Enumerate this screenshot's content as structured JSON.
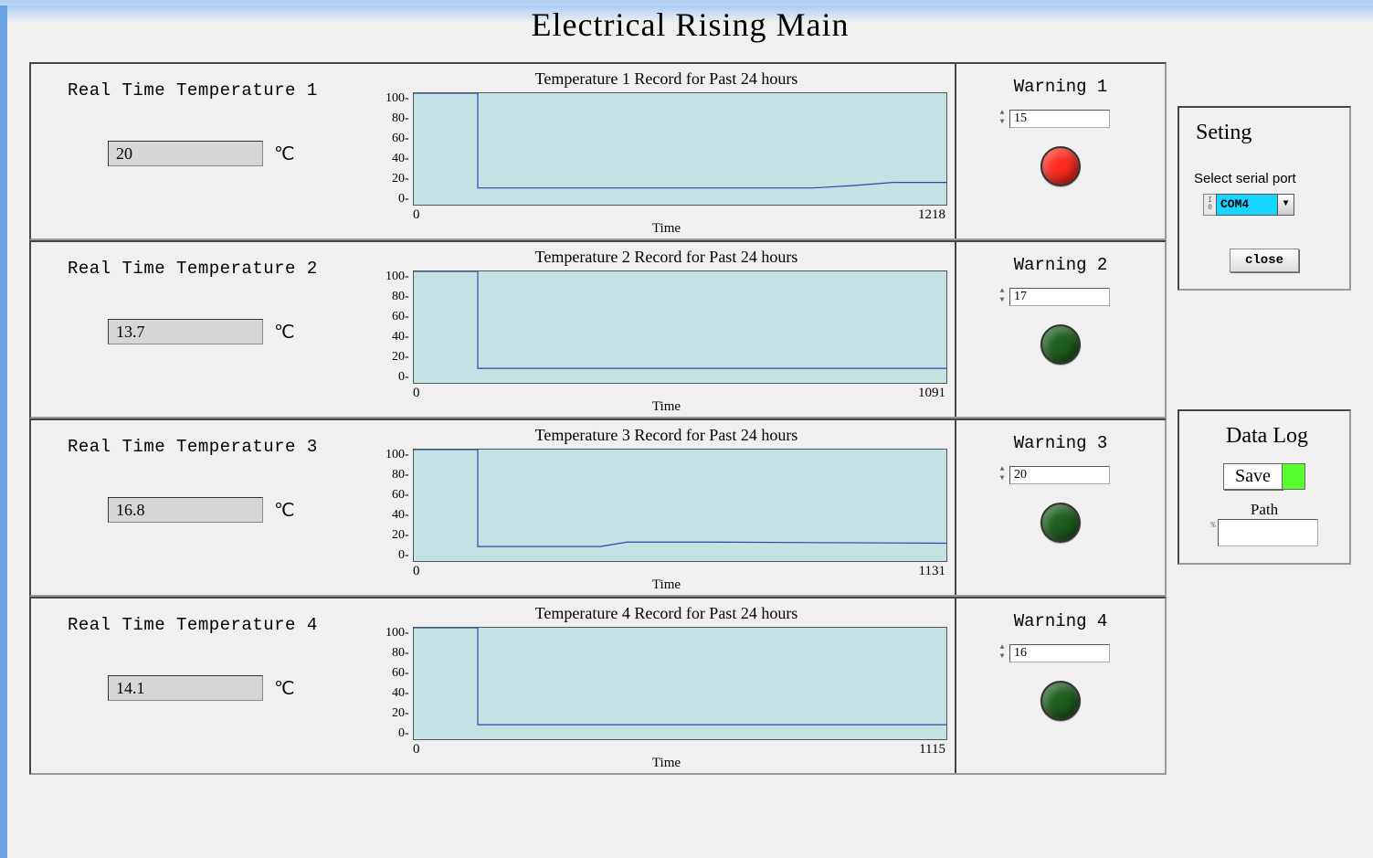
{
  "title": "Electrical Rising Main",
  "unit_symbol": "℃",
  "x_axis_label": "Time",
  "chart_style": {
    "ylim": [
      0,
      100
    ],
    "yticks": [
      100,
      80,
      60,
      40,
      20,
      0
    ],
    "xmin": 0,
    "plot_background": "#c4e2e3",
    "line_color": "#2448b0",
    "line_width": 1.2,
    "title_fontsize": 18,
    "tick_fontsize": 14
  },
  "led_colors": {
    "on_red": "#ff2a1f",
    "off_green": "#1e5e1e"
  },
  "channels": [
    {
      "rt_label": "Real Time Temperature 1",
      "rt_value": "20",
      "chart_title": "Temperature 1 Record for Past 24 hours",
      "xmax": 1218,
      "warn_title": "Warning 1",
      "warn_threshold": "15",
      "led": "on_red",
      "series": [
        [
          0,
          100
        ],
        [
          12,
          100
        ],
        [
          12,
          15
        ],
        [
          75,
          15
        ],
        [
          82,
          17
        ],
        [
          90,
          20
        ],
        [
          100,
          20
        ]
      ]
    },
    {
      "rt_label": "Real Time Temperature 2",
      "rt_value": "13.7",
      "chart_title": "Temperature 2 Record for Past 24 hours",
      "xmax": 1091,
      "warn_title": "Warning 2",
      "warn_threshold": "17",
      "led": "off_green",
      "series": [
        [
          0,
          100
        ],
        [
          12,
          100
        ],
        [
          12,
          13
        ],
        [
          100,
          13
        ]
      ]
    },
    {
      "rt_label": "Real Time Temperature 3",
      "rt_value": "16.8",
      "chart_title": "Temperature 3 Record for Past 24 hours",
      "xmax": 1131,
      "warn_title": "Warning 3",
      "warn_threshold": "20",
      "led": "off_green",
      "series": [
        [
          0,
          100
        ],
        [
          12,
          100
        ],
        [
          12,
          13
        ],
        [
          35,
          13
        ],
        [
          40,
          17
        ],
        [
          55,
          17
        ],
        [
          100,
          16
        ]
      ]
    },
    {
      "rt_label": "Real Time Temperature 4",
      "rt_value": "14.1",
      "chart_title": "Temperature 4 Record for Past 24 hours",
      "xmax": 1115,
      "warn_title": "Warning 4",
      "warn_threshold": "16",
      "led": "off_green",
      "series": [
        [
          0,
          100
        ],
        [
          12,
          100
        ],
        [
          12,
          13
        ],
        [
          100,
          13
        ]
      ]
    }
  ],
  "setting_panel": {
    "title": "Seting",
    "select_label": "Select serial port",
    "port_value": "COM4",
    "close_label": "close"
  },
  "datalog_panel": {
    "title": "Data Log",
    "save_label": "Save",
    "indicator_color": "#58ff2f",
    "path_label": "Path",
    "path_value": ""
  }
}
